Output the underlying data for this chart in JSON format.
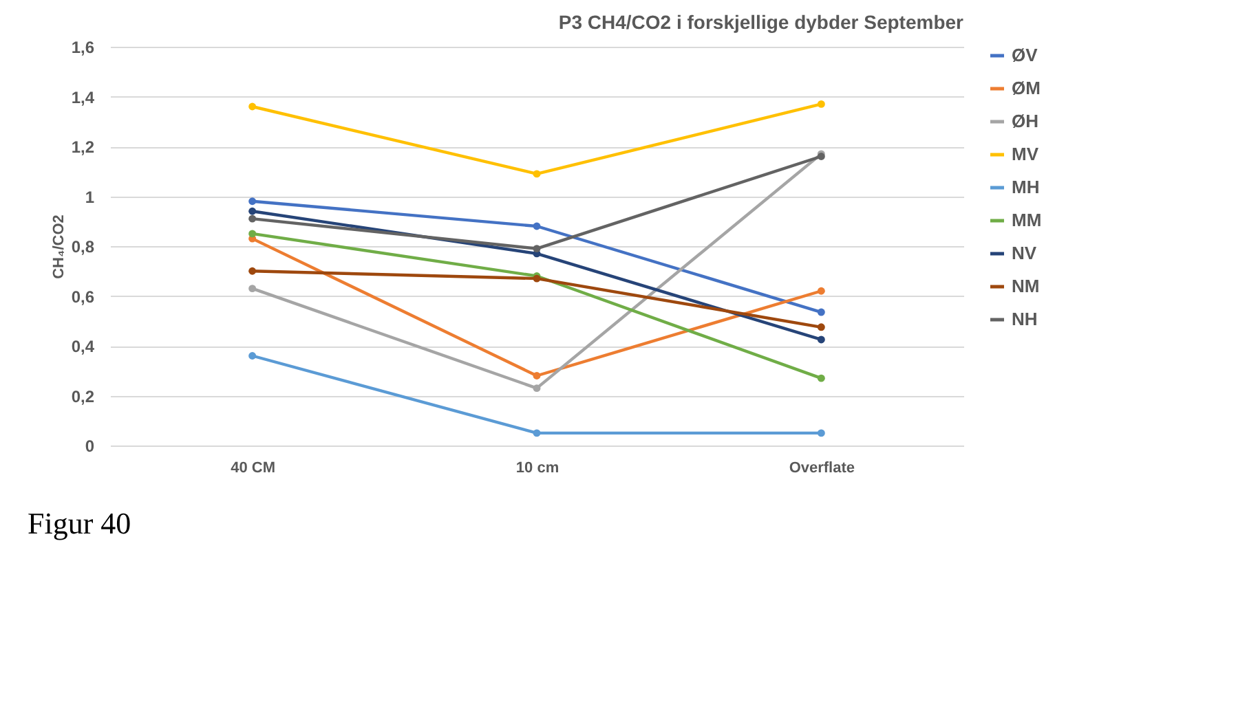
{
  "chart_data": {
    "type": "line",
    "title": "P3  CH4/CO2 i forskjellige dybder September",
    "ylabel": "CH₄/CO2",
    "categories": [
      "40 CM",
      "10 cm",
      "Overflate"
    ],
    "series": [
      {
        "name": "ØV",
        "color": "#4472c4",
        "values": [
          0.98,
          0.88,
          0.535
        ]
      },
      {
        "name": "ØM",
        "color": "#ed7d31",
        "values": [
          0.83,
          0.28,
          0.62
        ]
      },
      {
        "name": "ØH",
        "color": "#a5a5a5",
        "values": [
          0.63,
          0.23,
          1.17
        ]
      },
      {
        "name": "MV",
        "color": "#ffc000",
        "values": [
          1.36,
          1.09,
          1.37
        ]
      },
      {
        "name": "MH",
        "color": "#5b9bd5",
        "values": [
          0.36,
          0.05,
          0.05
        ]
      },
      {
        "name": "MM",
        "color": "#70ad47",
        "values": [
          0.85,
          0.68,
          0.27
        ]
      },
      {
        "name": "NV",
        "color": "#264478",
        "values": [
          0.94,
          0.77,
          0.425
        ]
      },
      {
        "name": "NM",
        "color": "#9e480e",
        "values": [
          0.7,
          0.67,
          0.475
        ]
      },
      {
        "name": "NH",
        "color": "#636363",
        "values": [
          0.91,
          0.79,
          1.16
        ]
      }
    ],
    "ylim": [
      0,
      1.6
    ],
    "yticks": [
      0,
      {
        "value": 0.2,
        "label": "0,2"
      },
      {
        "value": 0.4,
        "label": "0,4"
      },
      {
        "value": 0.6,
        "label": "0,6"
      },
      {
        "value": 0.8,
        "label": "0,8"
      },
      1,
      {
        "value": 1.2,
        "label": "1,2"
      },
      {
        "value": 1.4,
        "label": "1,4"
      },
      {
        "value": 1.6,
        "label": "1,6"
      }
    ],
    "grid": "y",
    "legend": "right",
    "marker": "circle",
    "line_style": "solid",
    "annotations": [
      "Figur 40"
    ]
  }
}
